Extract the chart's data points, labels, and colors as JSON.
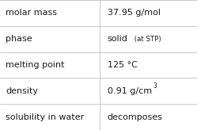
{
  "rows": [
    {
      "label": "molar mass",
      "value": "37.95 g/mol",
      "type": "plain"
    },
    {
      "label": "phase",
      "value": "solid",
      "type": "suffix",
      "suffix": " (at STP)"
    },
    {
      "label": "melting point",
      "value": "125 °C",
      "type": "plain"
    },
    {
      "label": "density",
      "value": "0.91 g/cm",
      "type": "super",
      "superscript": "3"
    },
    {
      "label": "solubility in water",
      "value": "decomposes",
      "type": "plain"
    }
  ],
  "col_split": 0.505,
  "bg_color": "#ffffff",
  "border_color": "#c0c0c0",
  "text_color": "#1a1a1a",
  "label_fontsize": 8.0,
  "value_fontsize": 8.0,
  "suffix_fontsize": 6.2,
  "super_fontsize": 5.5,
  "fig_w": 2.49,
  "fig_h": 1.64,
  "dpi": 100
}
